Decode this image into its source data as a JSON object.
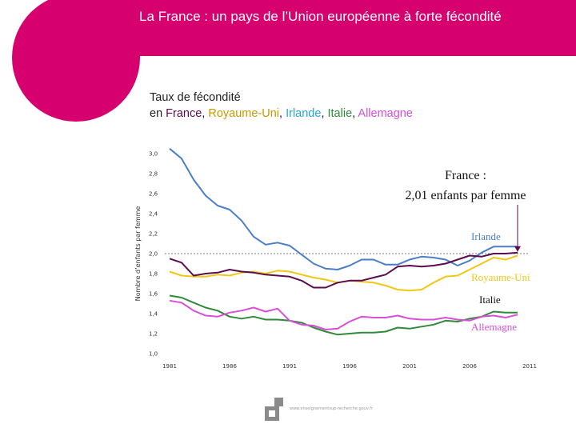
{
  "header": {
    "title": "La France : un pays de l’Union européenne à forte fécondité"
  },
  "colors": {
    "brand": "#d6006f",
    "france": "#5a0c4e",
    "royaume_uni": "#f0c814",
    "irlande": "#4a7fc8",
    "italie": "#2f8a3a",
    "allemagne": "#d84fd8"
  },
  "subtitle": {
    "line1": "Taux de fécondité",
    "prefix": "en ",
    "france": "France",
    "sep1": ", ",
    "royaume_uni": "Royaume-Uni",
    "sep2": ", ",
    "irlande": "Irlande",
    "sep3": ", ",
    "italie": "Italie",
    "sep4": ", ",
    "allemagne": "Allemagne"
  },
  "footer": {
    "url": "www.enseignementsup-recherche.gouv.fr",
    "logo_icon": "ministry-logo-icon"
  },
  "chart_data": {
    "type": "line",
    "title": "Taux de fécondité en France, Royaume-Uni, Irlande, Italie, Allemagne",
    "xlabel": "",
    "ylabel": "Nombre d’enfants par femme",
    "xlim": [
      1981,
      2011
    ],
    "ylim": [
      1.0,
      3.0
    ],
    "x_ticks": [
      "1981",
      "1986",
      "1991",
      "1996",
      "2001",
      "2006",
      "2011"
    ],
    "y_ticks": [
      "1,0",
      "1,2",
      "1,4",
      "1,6",
      "1,8",
      "2,0",
      "2,2",
      "2,4",
      "2,6",
      "2,8",
      "3,0"
    ],
    "reference_line": 2.0,
    "annotation": {
      "line1": "France :",
      "line2": "2,01 enfants par femme"
    },
    "x": [
      1981,
      1982,
      1983,
      1984,
      1985,
      1986,
      1987,
      1988,
      1989,
      1990,
      1991,
      1992,
      1993,
      1994,
      1995,
      1996,
      1997,
      1998,
      1999,
      2000,
      2001,
      2002,
      2003,
      2004,
      2005,
      2006,
      2007,
      2008,
      2009,
      2010
    ],
    "series": [
      {
        "name": "France",
        "label": "",
        "color": "#5a0c4e",
        "values": [
          1.95,
          1.91,
          1.78,
          1.8,
          1.81,
          1.84,
          1.82,
          1.81,
          1.79,
          1.78,
          1.77,
          1.73,
          1.66,
          1.66,
          1.71,
          1.73,
          1.73,
          1.76,
          1.79,
          1.87,
          1.88,
          1.87,
          1.88,
          1.9,
          1.94,
          1.98,
          1.97,
          2.0,
          2.0,
          2.01
        ]
      },
      {
        "name": "Royaume-Uni",
        "label": "Royaume-Uni",
        "color": "#f0c814",
        "values": [
          1.82,
          1.78,
          1.77,
          1.77,
          1.79,
          1.78,
          1.81,
          1.82,
          1.8,
          1.83,
          1.82,
          1.79,
          1.76,
          1.74,
          1.71,
          1.73,
          1.72,
          1.71,
          1.68,
          1.64,
          1.63,
          1.64,
          1.71,
          1.77,
          1.78,
          1.84,
          1.9,
          1.96,
          1.94,
          1.98
        ]
      },
      {
        "name": "Irlande",
        "label": "Irlande",
        "color": "#4a7fc8",
        "values": [
          3.05,
          2.95,
          2.74,
          2.58,
          2.48,
          2.44,
          2.33,
          2.17,
          2.09,
          2.11,
          2.08,
          1.99,
          1.9,
          1.85,
          1.84,
          1.88,
          1.94,
          1.94,
          1.89,
          1.89,
          1.94,
          1.97,
          1.96,
          1.94,
          1.88,
          1.93,
          2.01,
          2.07,
          2.07,
          2.07
        ]
      },
      {
        "name": "Italie",
        "label": "Italie",
        "color": "#2f8a3a",
        "values": [
          1.58,
          1.56,
          1.51,
          1.46,
          1.43,
          1.37,
          1.35,
          1.37,
          1.34,
          1.34,
          1.33,
          1.31,
          1.26,
          1.22,
          1.19,
          1.2,
          1.21,
          1.21,
          1.22,
          1.26,
          1.25,
          1.27,
          1.29,
          1.33,
          1.32,
          1.35,
          1.37,
          1.42,
          1.41,
          1.41
        ]
      },
      {
        "name": "Allemagne",
        "label": "Allemagne",
        "color": "#d84fd8",
        "values": [
          1.53,
          1.51,
          1.43,
          1.38,
          1.37,
          1.41,
          1.43,
          1.46,
          1.42,
          1.45,
          1.33,
          1.29,
          1.28,
          1.24,
          1.25,
          1.32,
          1.37,
          1.36,
          1.36,
          1.38,
          1.35,
          1.34,
          1.34,
          1.36,
          1.34,
          1.33,
          1.37,
          1.38,
          1.36,
          1.39
        ]
      }
    ]
  }
}
